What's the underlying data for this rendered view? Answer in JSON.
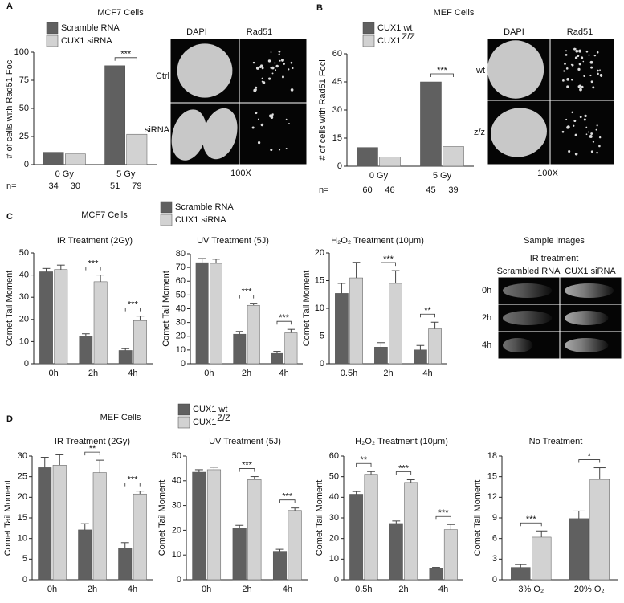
{
  "panels": [
    {
      "letter": "A",
      "labels": {
        "columns": [
          "DAPI",
          "Rad51"
        ],
        "rows": [
          "Ctrl",
          "siRNA"
        ],
        "magnification": "100X"
      }
    },
    {
      "letter": "B",
      "labels": {
        "columns": [
          "DAPI",
          "Rad51"
        ],
        "rows": [
          "wt",
          "z/z"
        ],
        "magnification": "100X"
      }
    },
    {
      "letter": "C",
      "title": "MCF7 Cells",
      "legend": [
        {
          "name": "Scramble RNA",
          "color": "#606060"
        },
        {
          "name": "CUX1 siRNA",
          "color": "#d2d2d2"
        }
      ],
      "samples": {
        "title": "Sample images",
        "subtitle": "IR treatment",
        "columns": [
          "Scrambled RNA",
          "CUX1 siRNA"
        ],
        "rows": [
          "0h",
          "2h",
          "4h"
        ]
      }
    },
    {
      "letter": "D",
      "title": "MEF Cells",
      "legend": [
        {
          "name": "CUX1 wt",
          "color": "#606060"
        },
        {
          "name": "CUX1",
          "name_sup": "Z/Z",
          "color": "#d2d2d2"
        }
      ]
    }
  ],
  "chart_data": [
    {
      "type": "bar",
      "title": "MCF7 Cells",
      "ylabel": "# of cells with Rad51 Foci",
      "categories": [
        "0 Gy",
        "5 Gy"
      ],
      "series": [
        {
          "name": "Scramble RNA",
          "color": "#606060",
          "values": [
            11,
            88
          ],
          "n": [
            34,
            51
          ]
        },
        {
          "name": "CUX1 siRNA",
          "color": "#d2d2d2",
          "values": [
            9.5,
            27
          ],
          "n": [
            30,
            79
          ]
        }
      ],
      "n_label": "n=",
      "annotations": [
        null,
        "***"
      ],
      "ylim": [
        0,
        100
      ],
      "yticks": [
        0,
        25,
        50,
        75,
        100
      ]
    },
    {
      "type": "bar",
      "title": "MEF Cells",
      "ylabel": "# of cells with Rad51 Foci",
      "categories": [
        "0 Gy",
        "5 Gy"
      ],
      "series": [
        {
          "name": "CUX1 wt",
          "color": "#606060",
          "values": [
            10,
            45
          ],
          "n": [
            60,
            45
          ]
        },
        {
          "name": "CUX1",
          "name_sup": "Z/Z",
          "color": "#d2d2d2",
          "values": [
            5,
            10.5
          ],
          "n": [
            46,
            39
          ]
        }
      ],
      "n_label": "n=",
      "annotations": [
        null,
        "***"
      ],
      "ylim": [
        0,
        60
      ],
      "yticks": [
        0,
        15,
        30,
        45,
        60
      ]
    },
    {
      "type": "bar",
      "title": "IR Treatment (2Gy)",
      "ylabel": "Comet Tail Moment",
      "categories": [
        "0h",
        "2h",
        "4h"
      ],
      "series": [
        {
          "color": "#606060",
          "values": [
            41.5,
            12.5,
            6
          ],
          "errors": [
            1.5,
            1,
            0.8
          ]
        },
        {
          "color": "#d2d2d2",
          "values": [
            42.5,
            37,
            19.5
          ],
          "errors": [
            2,
            3,
            2
          ]
        }
      ],
      "annotations": [
        null,
        "***",
        "***"
      ],
      "ylim": [
        0,
        50
      ],
      "yticks": [
        0,
        10,
        20,
        30,
        40,
        50
      ]
    },
    {
      "type": "bar",
      "title": "UV Treatment (5J)",
      "ylabel": "Comet Tail Moment",
      "categories": [
        "0h",
        "2h",
        "4h"
      ],
      "series": [
        {
          "color": "#606060",
          "values": [
            73.5,
            21.5,
            7.5
          ],
          "errors": [
            3,
            2,
            1.5
          ]
        },
        {
          "color": "#d2d2d2",
          "values": [
            73,
            42.5,
            22.5
          ],
          "errors": [
            3,
            1.5,
            2.5
          ]
        }
      ],
      "annotations": [
        null,
        "***",
        "***"
      ],
      "ylim": [
        0,
        80
      ],
      "yticks": [
        0,
        10,
        20,
        30,
        40,
        50,
        60,
        70,
        80
      ]
    },
    {
      "type": "bar",
      "title": "H₂O₂ Treatment (10μm)",
      "ylabel": "Comet Tail Moment",
      "categories": [
        "0.5h",
        "2h",
        "4h"
      ],
      "series": [
        {
          "color": "#606060",
          "values": [
            12.7,
            3,
            2.5
          ],
          "errors": [
            1.8,
            0.8,
            0.8
          ]
        },
        {
          "color": "#d2d2d2",
          "values": [
            15.5,
            14.5,
            6.3
          ],
          "errors": [
            2.8,
            2.3,
            1.2
          ]
        }
      ],
      "annotations": [
        null,
        "***",
        "**"
      ],
      "ylim": [
        0,
        20
      ],
      "yticks": [
        0,
        5,
        10,
        15,
        20
      ]
    },
    {
      "type": "bar",
      "title": "IR Treatment (2Gy)",
      "ylabel": "Comet Tail Moment",
      "categories": [
        "0h",
        "2h",
        "4h"
      ],
      "series": [
        {
          "color": "#606060",
          "values": [
            27.2,
            12.1,
            7.7
          ],
          "errors": [
            2.5,
            1.5,
            1.3
          ]
        },
        {
          "color": "#d2d2d2",
          "values": [
            27.8,
            26,
            20.8
          ],
          "errors": [
            2.5,
            3,
            0.7
          ]
        }
      ],
      "annotations": [
        null,
        "**",
        "***"
      ],
      "ylim": [
        0,
        30
      ],
      "yticks": [
        0,
        5,
        10,
        15,
        20,
        25,
        30
      ]
    },
    {
      "type": "bar",
      "title": "UV Treatment (5J)",
      "ylabel": "Comet Tail Moment",
      "categories": [
        "0h",
        "2h",
        "4h"
      ],
      "series": [
        {
          "color": "#606060",
          "values": [
            43.5,
            21,
            11.5
          ],
          "errors": [
            1,
            1,
            0.8
          ]
        },
        {
          "color": "#d2d2d2",
          "values": [
            44.5,
            40.5,
            28
          ],
          "errors": [
            1,
            1.2,
            1
          ]
        }
      ],
      "annotations": [
        null,
        "***",
        "***"
      ],
      "ylim": [
        0,
        50
      ],
      "yticks": [
        0,
        10,
        20,
        30,
        40,
        50
      ]
    },
    {
      "type": "bar",
      "title": "H₂O₂ Treatment (10μm)",
      "ylabel": "Comet Tail Moment",
      "categories": [
        "0.5h",
        "2h",
        "4h"
      ],
      "series": [
        {
          "color": "#606060",
          "values": [
            41.5,
            27.3,
            5.5
          ],
          "errors": [
            1.3,
            1.2,
            0.5
          ]
        },
        {
          "color": "#d2d2d2",
          "values": [
            51.2,
            47.2,
            24.3
          ],
          "errors": [
            1.3,
            1.3,
            2.5
          ]
        }
      ],
      "annotations": [
        "**",
        "***",
        "***"
      ],
      "ylim": [
        0,
        60
      ],
      "yticks": [
        0,
        10,
        20,
        30,
        40,
        50,
        60
      ]
    },
    {
      "type": "bar",
      "title": "No Treatment",
      "ylabel": "Comet Tail Moment",
      "categories": [
        "3% O₂",
        "20% O₂"
      ],
      "series": [
        {
          "color": "#606060",
          "values": [
            1.8,
            8.9
          ],
          "errors": [
            0.4,
            1.1
          ]
        },
        {
          "color": "#d2d2d2",
          "values": [
            6.2,
            14.6
          ],
          "errors": [
            0.9,
            1.7
          ]
        }
      ],
      "annotations": [
        "***",
        "*"
      ],
      "ylim": [
        0,
        18
      ],
      "yticks": [
        0,
        3,
        6,
        9,
        12,
        15,
        18
      ]
    }
  ]
}
